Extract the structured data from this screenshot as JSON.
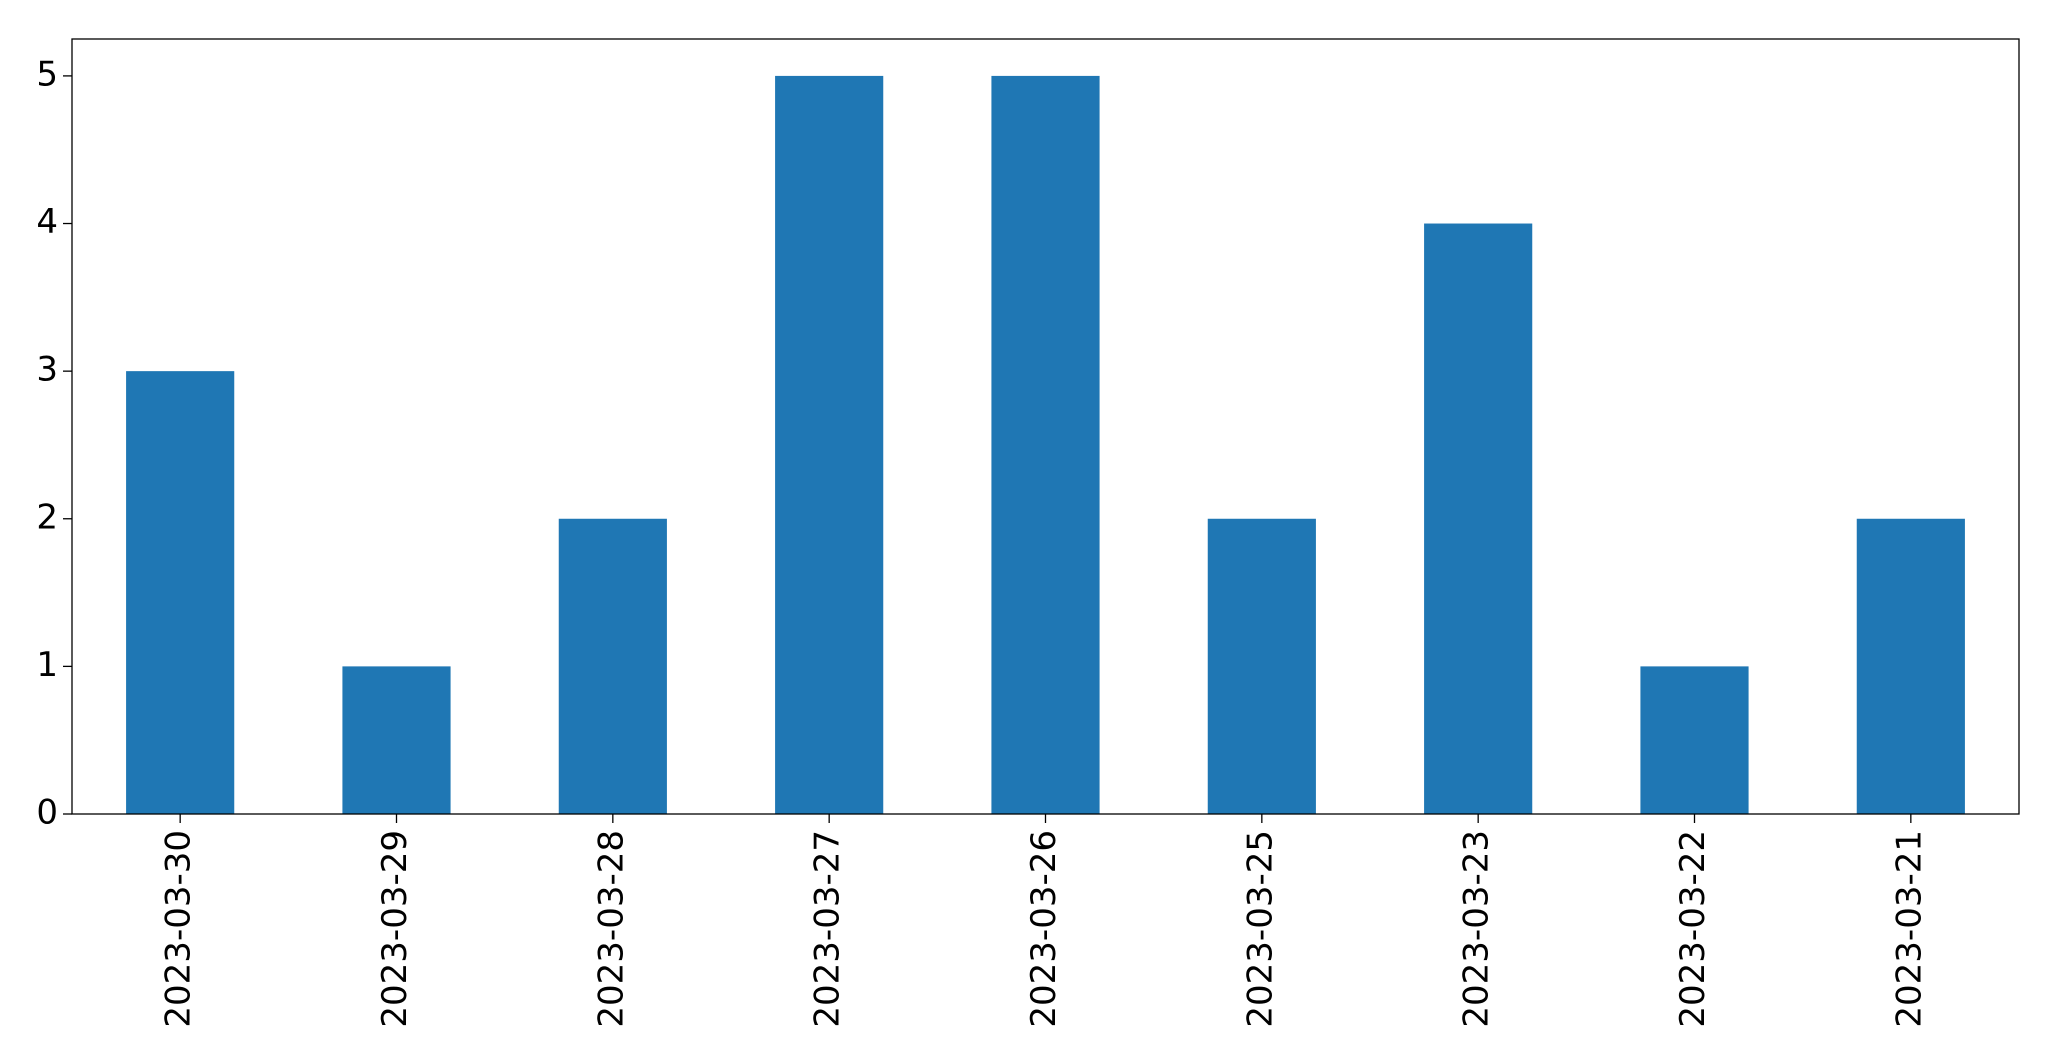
{
  "chart_data": {
    "type": "bar",
    "categories": [
      "2023-03-30",
      "2023-03-29",
      "2023-03-28",
      "2023-03-27",
      "2023-03-26",
      "2023-03-25",
      "2023-03-23",
      "2023-03-22",
      "2023-03-21"
    ],
    "values": [
      3,
      1,
      2,
      5,
      5,
      2,
      4,
      1,
      2
    ],
    "color": "#1f77b4",
    "ylim": [
      0,
      5.25
    ],
    "yticks": [
      0,
      1,
      2,
      3,
      4,
      5
    ],
    "grid": false
  }
}
